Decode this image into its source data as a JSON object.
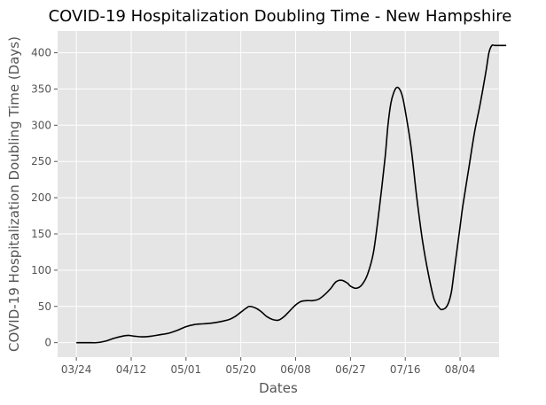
{
  "chart_data": {
    "type": "line",
    "title": "COVID-19 Hospitalization Doubling Time - New Hampshire",
    "xlabel": "Dates",
    "ylabel": "COVID-19 Hospitalization Doubling Time (Days)",
    "x_tick_labels": [
      "03/24",
      "04/12",
      "05/01",
      "05/20",
      "06/08",
      "06/27",
      "07/16",
      "08/04"
    ],
    "x_tick_days": [
      0,
      19,
      38,
      57,
      76,
      95,
      114,
      133
    ],
    "xlim": [
      -6.5,
      146.5
    ],
    "yticks": [
      0,
      50,
      100,
      150,
      200,
      250,
      300,
      350,
      400
    ],
    "ylim": [
      -20,
      430
    ],
    "grid": true,
    "style": "ggplot",
    "line_color": "#000000",
    "background_color": "#e5e5e5",
    "grid_color": "#ffffff",
    "series": [
      {
        "x_days": [
          0,
          4,
          7,
          10,
          13,
          16,
          18,
          20,
          23,
          26,
          29,
          32,
          35,
          38,
          41,
          44,
          47,
          50,
          53,
          55,
          57,
          59,
          60,
          62,
          64,
          66,
          68,
          70,
          72,
          74,
          76,
          78,
          80,
          82,
          84,
          86,
          88,
          90,
          92,
          94,
          95,
          97,
          99,
          101,
          103,
          105,
          107,
          108,
          109,
          110,
          111,
          112,
          113,
          114,
          116,
          118,
          120,
          122,
          124,
          126,
          127,
          128,
          129,
          130,
          131,
          132,
          133,
          134,
          136,
          138,
          140,
          142,
          143,
          144,
          145,
          146,
          147,
          148,
          149
        ],
        "y": [
          0,
          0,
          0,
          2,
          6,
          9,
          10,
          9,
          8,
          9,
          11,
          13,
          17,
          22,
          25,
          26,
          27,
          29,
          32,
          36,
          42,
          48,
          50,
          48,
          43,
          36,
          32,
          31,
          36,
          44,
          52,
          57,
          58,
          58,
          60,
          66,
          74,
          84,
          86,
          82,
          78,
          75,
          80,
          95,
          125,
          185,
          255,
          300,
          330,
          345,
          352,
          350,
          340,
          320,
          270,
          200,
          140,
          95,
          60,
          47,
          46,
          48,
          55,
          70,
          100,
          130,
          160,
          190,
          240,
          290,
          330,
          375,
          400,
          410,
          410,
          410,
          410,
          410,
          410
        ]
      }
    ]
  }
}
